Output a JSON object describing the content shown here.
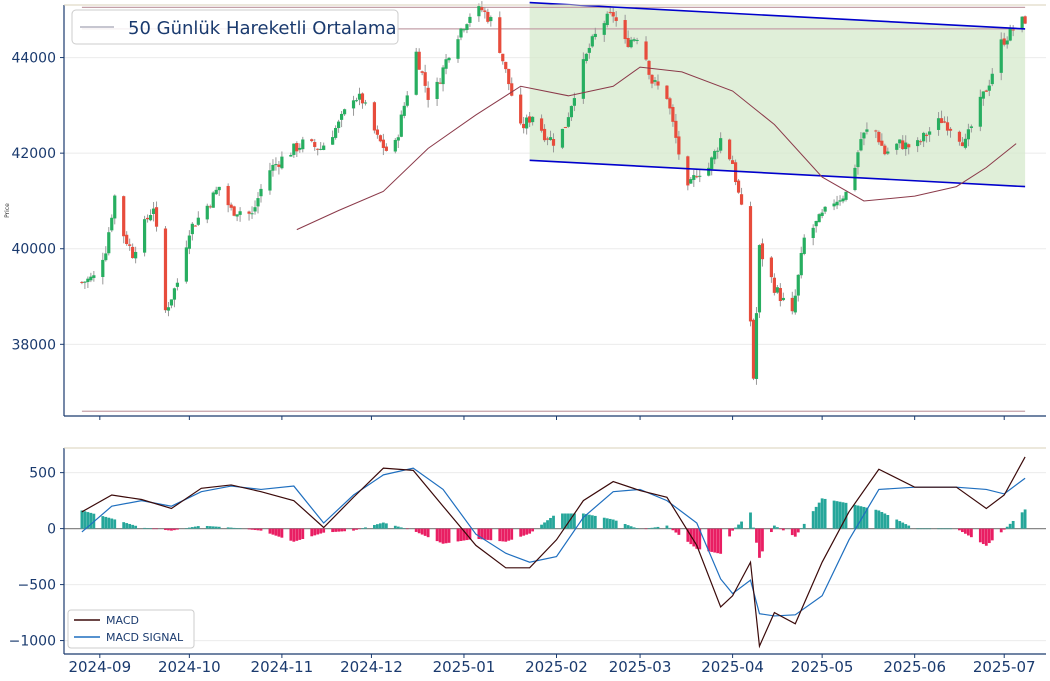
{
  "chart_data": [
    {
      "type": "candlestick",
      "ylabel": "Price",
      "ylim": [
        36500,
        45100
      ],
      "y_ticks": [
        38000,
        40000,
        42000,
        44000
      ],
      "x_ticks": [
        "2024-09",
        "2024-10",
        "2024-11",
        "2024-12",
        "2025-01",
        "2025-02",
        "2025-03",
        "2025-04",
        "2025-05",
        "2025-06",
        "2025-07"
      ],
      "x_range": [
        "2024-08-20",
        "2025-07-15"
      ],
      "legend": {
        "label": "50 Günlük Hareketli Ortalama",
        "placement": "top-left"
      },
      "grid": true,
      "colors": {
        "up": "#27ae60",
        "down": "#e74c3c",
        "wick": "#999999",
        "ma": "#8b3a4a",
        "channel": "#0000cc",
        "channel_fill": "#d5eacc",
        "level_line": "#c4a0a8",
        "axis": "#1a3a6e"
      },
      "horizontal_levels": [
        45050,
        44600,
        36600
      ],
      "channel": {
        "upper": [
          {
            "x": "2025-01-23",
            "y": 45150
          },
          {
            "x": "2025-07-08",
            "y": 44600
          }
        ],
        "lower": [
          {
            "x": "2025-01-23",
            "y": 41850
          },
          {
            "x": "2025-07-08",
            "y": 41300
          }
        ]
      },
      "ohlc_keypoints": [
        [
          "2024-08-26",
          39300
        ],
        [
          "2024-08-30",
          39400
        ],
        [
          "2024-09-03",
          40000
        ],
        [
          "2024-09-06",
          41100
        ],
        [
          "2024-09-09",
          40300
        ],
        [
          "2024-09-12",
          39900
        ],
        [
          "2024-09-16",
          40500
        ],
        [
          "2024-09-19",
          40900
        ],
        [
          "2024-09-23",
          38700
        ],
        [
          "2024-09-27",
          39300
        ],
        [
          "2024-10-01",
          40400
        ],
        [
          "2024-10-06",
          40800
        ],
        [
          "2024-10-11",
          41300
        ],
        [
          "2024-10-15",
          40800
        ],
        [
          "2024-10-18",
          40800
        ],
        [
          "2024-10-22",
          40700
        ],
        [
          "2024-10-27",
          41600
        ],
        [
          "2024-11-03",
          42000
        ],
        [
          "2024-11-08",
          42200
        ],
        [
          "2024-11-14",
          42100
        ],
        [
          "2024-11-20",
          42600
        ],
        [
          "2024-11-25",
          43200
        ],
        [
          "2024-11-28",
          43100
        ],
        [
          "2024-12-03",
          42300
        ],
        [
          "2024-12-08",
          41900
        ],
        [
          "2024-12-12",
          43000
        ],
        [
          "2024-12-16",
          44100
        ],
        [
          "2024-12-20",
          43200
        ],
        [
          "2024-12-23",
          43400
        ],
        [
          "2024-12-28",
          44300
        ],
        [
          "2025-01-03",
          44900
        ],
        [
          "2025-01-07",
          45000
        ],
        [
          "2025-01-11",
          44700
        ],
        [
          "2025-01-15",
          43700
        ],
        [
          "2025-01-20",
          42500
        ],
        [
          "2025-01-24",
          42800
        ],
        [
          "2025-01-28",
          42400
        ],
        [
          "2025-02-01",
          42200
        ],
        [
          "2025-02-04",
          42600
        ],
        [
          "2025-02-08",
          43500
        ],
        [
          "2025-02-12",
          44200
        ],
        [
          "2025-02-16",
          44700
        ],
        [
          "2025-02-20",
          44900
        ],
        [
          "2025-02-24",
          44300
        ],
        [
          "2025-03-01",
          44500
        ],
        [
          "2025-03-05",
          43500
        ],
        [
          "2025-03-10",
          43200
        ],
        [
          "2025-03-14",
          42000
        ],
        [
          "2025-03-17",
          41200
        ],
        [
          "2025-03-20",
          41600
        ],
        [
          "2025-03-24",
          41700
        ],
        [
          "2025-03-28",
          42300
        ],
        [
          "2025-04-01",
          41800
        ],
        [
          "2025-04-04",
          40800
        ],
        [
          "2025-04-07",
          38500
        ],
        [
          "2025-04-08",
          37300
        ],
        [
          "2025-04-10",
          40000
        ],
        [
          "2025-04-15",
          39200
        ],
        [
          "2025-04-21",
          38600
        ],
        [
          "2025-04-25",
          40200
        ],
        [
          "2025-04-30",
          40600
        ],
        [
          "2025-05-05",
          41000
        ],
        [
          "2025-05-10",
          41200
        ],
        [
          "2025-05-14",
          42300
        ],
        [
          "2025-05-18",
          42600
        ],
        [
          "2025-05-22",
          42000
        ],
        [
          "2025-05-27",
          42200
        ],
        [
          "2025-06-01",
          42100
        ],
        [
          "2025-06-05",
          42400
        ],
        [
          "2025-06-10",
          42700
        ],
        [
          "2025-06-14",
          42500
        ],
        [
          "2025-06-18",
          42200
        ],
        [
          "2025-06-22",
          42900
        ],
        [
          "2025-06-26",
          43500
        ],
        [
          "2025-06-30",
          44300
        ],
        [
          "2025-07-04",
          44600
        ],
        [
          "2025-07-08",
          44800
        ]
      ],
      "ma_series": [
        [
          "2024-11-06",
          40400
        ],
        [
          "2024-11-20",
          40800
        ],
        [
          "2024-12-05",
          41200
        ],
        [
          "2024-12-20",
          42100
        ],
        [
          "2025-01-05",
          42800
        ],
        [
          "2025-01-20",
          43400
        ],
        [
          "2025-02-05",
          43200
        ],
        [
          "2025-02-20",
          43400
        ],
        [
          "2025-03-01",
          43800
        ],
        [
          "2025-03-15",
          43700
        ],
        [
          "2025-04-01",
          43300
        ],
        [
          "2025-04-15",
          42600
        ],
        [
          "2025-05-01",
          41500
        ],
        [
          "2025-05-15",
          41000
        ],
        [
          "2025-06-01",
          41100
        ],
        [
          "2025-06-15",
          41300
        ],
        [
          "2025-06-25",
          41700
        ],
        [
          "2025-07-05",
          42200
        ]
      ]
    },
    {
      "type": "macd",
      "ylim": [
        -1120,
        720
      ],
      "y_ticks": [
        500,
        0,
        -500,
        -1000
      ],
      "y_tick_labels": [
        "500",
        "0",
        "−500",
        "−1000"
      ],
      "legend": {
        "entries": [
          "MACD",
          "MACD SIGNAL"
        ],
        "placement": "bottom-left"
      },
      "colors": {
        "macd": "#3b0a0a",
        "signal": "#1f6fbf",
        "hist_pos": "#26a69a",
        "hist_neg": "#e91e63"
      },
      "macd": [
        [
          "2024-08-26",
          150
        ],
        [
          "2024-09-05",
          300
        ],
        [
          "2024-09-15",
          260
        ],
        [
          "2024-09-25",
          180
        ],
        [
          "2024-10-05",
          360
        ],
        [
          "2024-10-15",
          390
        ],
        [
          "2024-10-25",
          330
        ],
        [
          "2024-11-05",
          250
        ],
        [
          "2024-11-15",
          10
        ],
        [
          "2024-11-25",
          280
        ],
        [
          "2024-12-05",
          540
        ],
        [
          "2024-12-15",
          520
        ],
        [
          "2024-12-25",
          200
        ],
        [
          "2025-01-05",
          -150
        ],
        [
          "2025-01-15",
          -350
        ],
        [
          "2025-01-23",
          -350
        ],
        [
          "2025-02-01",
          -100
        ],
        [
          "2025-02-10",
          250
        ],
        [
          "2025-02-20",
          420
        ],
        [
          "2025-03-01",
          340
        ],
        [
          "2025-03-10",
          280
        ],
        [
          "2025-03-20",
          -150
        ],
        [
          "2025-03-28",
          -700
        ],
        [
          "2025-04-01",
          -600
        ],
        [
          "2025-04-07",
          -300
        ],
        [
          "2025-04-10",
          -1050
        ],
        [
          "2025-04-15",
          -750
        ],
        [
          "2025-04-22",
          -850
        ],
        [
          "2025-05-01",
          -300
        ],
        [
          "2025-05-10",
          150
        ],
        [
          "2025-05-20",
          530
        ],
        [
          "2025-06-01",
          370
        ],
        [
          "2025-06-15",
          370
        ],
        [
          "2025-06-25",
          180
        ],
        [
          "2025-07-01",
          300
        ],
        [
          "2025-07-08",
          640
        ]
      ],
      "signal": [
        [
          "2024-08-26",
          -30
        ],
        [
          "2024-09-05",
          200
        ],
        [
          "2024-09-15",
          250
        ],
        [
          "2024-09-25",
          200
        ],
        [
          "2024-10-05",
          330
        ],
        [
          "2024-10-15",
          380
        ],
        [
          "2024-10-25",
          350
        ],
        [
          "2024-11-05",
          380
        ],
        [
          "2024-11-15",
          50
        ],
        [
          "2024-11-25",
          300
        ],
        [
          "2024-12-05",
          480
        ],
        [
          "2024-12-15",
          540
        ],
        [
          "2024-12-25",
          350
        ],
        [
          "2025-01-05",
          -50
        ],
        [
          "2025-01-15",
          -220
        ],
        [
          "2025-01-23",
          -300
        ],
        [
          "2025-02-01",
          -250
        ],
        [
          "2025-02-10",
          100
        ],
        [
          "2025-02-20",
          330
        ],
        [
          "2025-03-01",
          350
        ],
        [
          "2025-03-10",
          250
        ],
        [
          "2025-03-20",
          50
        ],
        [
          "2025-03-28",
          -450
        ],
        [
          "2025-04-01",
          -580
        ],
        [
          "2025-04-07",
          -460
        ],
        [
          "2025-04-10",
          -760
        ],
        [
          "2025-04-15",
          -780
        ],
        [
          "2025-04-22",
          -770
        ],
        [
          "2025-05-01",
          -600
        ],
        [
          "2025-05-10",
          -100
        ],
        [
          "2025-05-20",
          350
        ],
        [
          "2025-06-01",
          370
        ],
        [
          "2025-06-15",
          370
        ],
        [
          "2025-06-25",
          350
        ],
        [
          "2025-07-01",
          310
        ],
        [
          "2025-07-08",
          450
        ]
      ]
    }
  ]
}
